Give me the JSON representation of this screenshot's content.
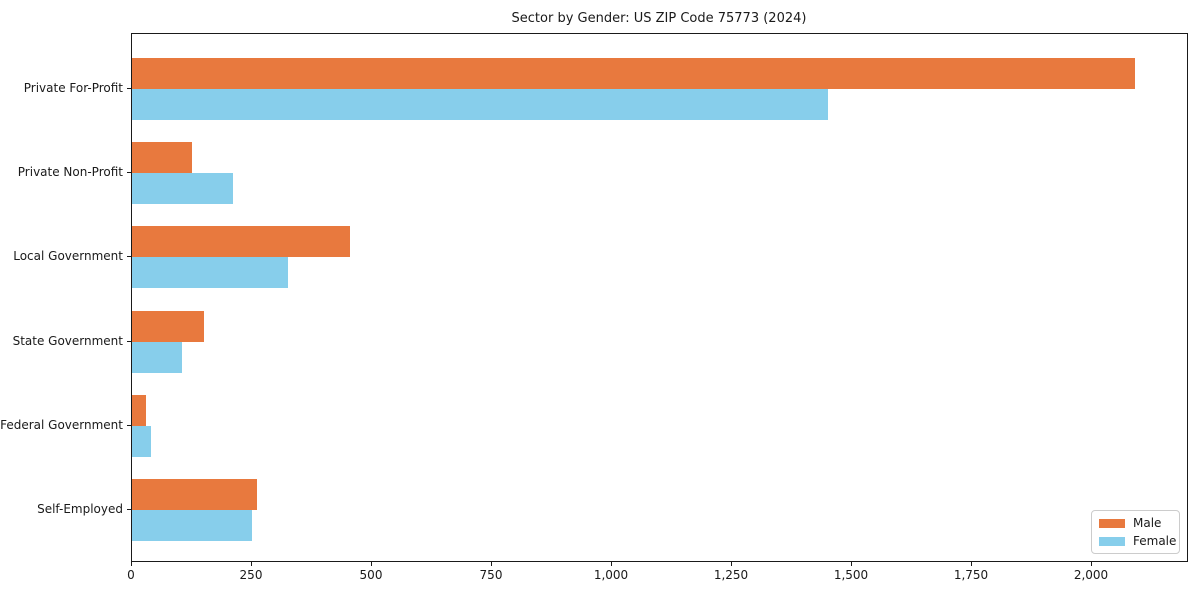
{
  "title": "Sector by Gender: US ZIP Code 75773 (2024)",
  "chart_data": {
    "type": "bar",
    "orientation": "horizontal",
    "title": "Sector by Gender: US ZIP Code 75773 (2024)",
    "categories": [
      "Private For-Profit",
      "Private Non-Profit",
      "Local Government",
      "State Government",
      "Federal Government",
      "Self-Employed"
    ],
    "series": [
      {
        "name": "Male",
        "color": "#e8793e",
        "values": [
          2090,
          125,
          455,
          150,
          30,
          260
        ]
      },
      {
        "name": "Female",
        "color": "#87ceeb",
        "values": [
          1450,
          210,
          325,
          105,
          40,
          250
        ]
      }
    ],
    "xlabel": "",
    "ylabel": "",
    "xlim": [
      0,
      2200
    ],
    "x_ticks": [
      0,
      250,
      500,
      750,
      1000,
      1250,
      1500,
      1750,
      2000
    ],
    "x_tick_labels": [
      "0",
      "250",
      "500",
      "750",
      "1,000",
      "1,250",
      "1,500",
      "1,750",
      "2,000"
    ],
    "grid": false,
    "legend_position": "lower right"
  },
  "legend": {
    "items": [
      {
        "label": "Male",
        "color": "#e8793e"
      },
      {
        "label": "Female",
        "color": "#87ceeb"
      }
    ]
  }
}
